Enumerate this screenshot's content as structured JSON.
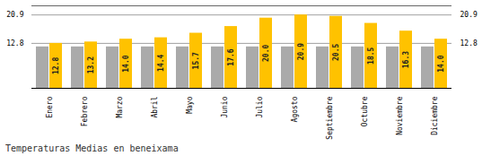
{
  "chart_data": {
    "type": "bar",
    "title": "Temperaturas Medias en beneixama",
    "categories": [
      "Enero",
      "Febrero",
      "Marzo",
      "Abril",
      "Mayo",
      "Junio",
      "Julio",
      "Agosto",
      "Septiembre",
      "Octubre",
      "Noviembre",
      "Diciembre"
    ],
    "series": [
      {
        "color": "#AAAAAA",
        "data_labels": false,
        "values": [
          11.8,
          11.8,
          11.8,
          11.8,
          11.8,
          11.8,
          11.8,
          11.8,
          11.8,
          11.8,
          11.8,
          11.8
        ]
      },
      {
        "color": "#FFC200",
        "data_labels": true,
        "values": [
          12.8,
          13.2,
          14.0,
          14.4,
          15.7,
          17.6,
          20.0,
          20.9,
          20.5,
          18.5,
          16.3,
          14.0
        ],
        "value_labels": [
          "12.8",
          "13.2",
          "14.0",
          "14.4",
          "15.7",
          "17.6",
          "20.0",
          "20.9",
          "20.5",
          "18.5",
          "16.3",
          "14.0"
        ]
      }
    ],
    "ylim": [
      0,
      23.5
    ],
    "yticks": [
      12.8,
      20.9
    ],
    "y2lim": [
      0,
      23.5
    ],
    "y2ticks": [
      12.8,
      20.9
    ],
    "grid": true
  }
}
